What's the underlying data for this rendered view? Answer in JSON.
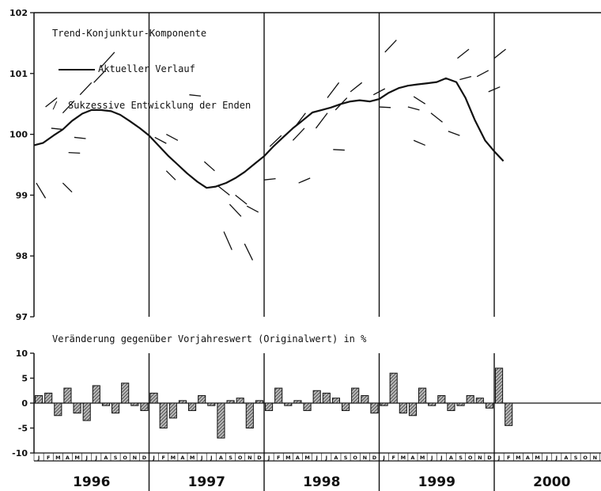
{
  "colors": {
    "ink": "#111111",
    "background": "#ffffff",
    "bar_hatch": "#333333"
  },
  "chart_data": [
    {
      "type": "line",
      "title": "Trend-Konjunktur-Komponente",
      "legend": {
        "position": "top-left",
        "line_label": "Aktueller Verlauf",
        "dash_symbol": "/",
        "dash_label": "Sukzessive Entwicklung der Enden"
      },
      "ylim": [
        97,
        102
      ],
      "yticks": [
        "97",
        "98",
        "99",
        "100",
        "101",
        "102"
      ],
      "xlim": [
        1996.0,
        2001.0
      ],
      "year_dividers": [
        1997,
        1998,
        1999,
        2000
      ],
      "series": [
        {
          "name": "Aktueller Verlauf",
          "points": [
            [
              1996.0,
              99.82
            ],
            [
              1996.08,
              99.86
            ],
            [
              1996.17,
              99.98
            ],
            [
              1996.25,
              100.08
            ],
            [
              1996.33,
              100.22
            ],
            [
              1996.42,
              100.34
            ],
            [
              1996.5,
              100.4
            ],
            [
              1996.58,
              100.4
            ],
            [
              1996.67,
              100.38
            ],
            [
              1996.75,
              100.32
            ],
            [
              1996.83,
              100.22
            ],
            [
              1996.92,
              100.1
            ],
            [
              1997.0,
              99.98
            ],
            [
              1997.08,
              99.82
            ],
            [
              1997.17,
              99.64
            ],
            [
              1997.25,
              99.5
            ],
            [
              1997.33,
              99.36
            ],
            [
              1997.42,
              99.22
            ],
            [
              1997.5,
              99.12
            ],
            [
              1997.58,
              99.14
            ],
            [
              1997.67,
              99.2
            ],
            [
              1997.75,
              99.28
            ],
            [
              1997.83,
              99.38
            ],
            [
              1997.92,
              99.52
            ],
            [
              1998.0,
              99.64
            ],
            [
              1998.08,
              99.8
            ],
            [
              1998.17,
              99.96
            ],
            [
              1998.25,
              100.1
            ],
            [
              1998.33,
              100.22
            ],
            [
              1998.42,
              100.36
            ],
            [
              1998.5,
              100.4
            ],
            [
              1998.58,
              100.44
            ],
            [
              1998.67,
              100.5
            ],
            [
              1998.75,
              100.54
            ],
            [
              1998.83,
              100.56
            ],
            [
              1998.92,
              100.54
            ],
            [
              1999.0,
              100.58
            ],
            [
              1999.08,
              100.68
            ],
            [
              1999.17,
              100.76
            ],
            [
              1999.25,
              100.8
            ],
            [
              1999.33,
              100.82
            ],
            [
              1999.42,
              100.84
            ],
            [
              1999.5,
              100.86
            ],
            [
              1999.58,
              100.92
            ],
            [
              1999.67,
              100.86
            ],
            [
              1999.75,
              100.6
            ],
            [
              1999.83,
              100.24
            ],
            [
              1999.92,
              99.9
            ],
            [
              2000.0,
              99.72
            ],
            [
              2000.08,
              99.56
            ]
          ]
        }
      ],
      "successive_ends": [
        [
          [
            1996.02,
            99.2
          ],
          [
            1996.1,
            98.95
          ]
        ],
        [
          [
            1996.25,
            99.2
          ],
          [
            1996.33,
            99.05
          ]
        ],
        [
          [
            1996.1,
            100.45
          ],
          [
            1996.2,
            100.6
          ]
        ],
        [
          [
            1996.25,
            100.35
          ],
          [
            1996.35,
            100.55
          ]
        ],
        [
          [
            1996.4,
            100.65
          ],
          [
            1996.5,
            100.85
          ]
        ],
        [
          [
            1996.52,
            100.85
          ],
          [
            1996.62,
            101.05
          ]
        ],
        [
          [
            1996.58,
            101.1
          ],
          [
            1996.7,
            101.35
          ]
        ],
        [
          [
            1996.15,
            100.1
          ],
          [
            1996.25,
            100.08
          ]
        ],
        [
          [
            1996.35,
            99.95
          ],
          [
            1996.45,
            99.93
          ]
        ],
        [
          [
            1996.3,
            99.7
          ],
          [
            1996.4,
            99.69
          ]
        ],
        [
          [
            1997.15,
            99.4
          ],
          [
            1997.23,
            99.25
          ]
        ],
        [
          [
            1997.05,
            99.95
          ],
          [
            1997.15,
            99.85
          ]
        ],
        [
          [
            1997.15,
            100.0
          ],
          [
            1997.25,
            99.9
          ]
        ],
        [
          [
            1997.48,
            99.55
          ],
          [
            1997.57,
            99.4
          ]
        ],
        [
          [
            1997.6,
            99.15
          ],
          [
            1997.7,
            99.0
          ]
        ],
        [
          [
            1997.75,
            99.0
          ],
          [
            1997.85,
            98.85
          ]
        ],
        [
          [
            1997.7,
            98.85
          ],
          [
            1997.8,
            98.65
          ]
        ],
        [
          [
            1997.85,
            98.82
          ],
          [
            1997.95,
            98.72
          ]
        ],
        [
          [
            1997.65,
            98.4
          ],
          [
            1997.72,
            98.1
          ]
        ],
        [
          [
            1997.83,
            98.2
          ],
          [
            1997.9,
            97.93
          ]
        ],
        [
          [
            1997.35,
            100.65
          ],
          [
            1997.45,
            100.63
          ]
        ],
        [
          [
            1998.0,
            99.25
          ],
          [
            1998.1,
            99.27
          ]
        ],
        [
          [
            1998.3,
            99.2
          ],
          [
            1998.4,
            99.28
          ]
        ],
        [
          [
            1998.05,
            99.8
          ],
          [
            1998.15,
            99.98
          ]
        ],
        [
          [
            1998.25,
            99.9
          ],
          [
            1998.35,
            100.1
          ]
        ],
        [
          [
            1998.28,
            100.15
          ],
          [
            1998.36,
            100.35
          ]
        ],
        [
          [
            1998.45,
            100.1
          ],
          [
            1998.55,
            100.35
          ]
        ],
        [
          [
            1998.55,
            100.6
          ],
          [
            1998.65,
            100.85
          ]
        ],
        [
          [
            1998.62,
            100.4
          ],
          [
            1998.72,
            100.6
          ]
        ],
        [
          [
            1998.75,
            100.7
          ],
          [
            1998.85,
            100.85
          ]
        ],
        [
          [
            1998.6,
            99.75
          ],
          [
            1998.7,
            99.74
          ]
        ],
        [
          [
            1998.95,
            100.65
          ],
          [
            1999.05,
            100.75
          ]
        ],
        [
          [
            1999.05,
            101.35
          ],
          [
            1999.15,
            101.55
          ]
        ],
        [
          [
            1999.0,
            100.45
          ],
          [
            1999.1,
            100.44
          ]
        ],
        [
          [
            1999.25,
            100.45
          ],
          [
            1999.35,
            100.4
          ]
        ],
        [
          [
            1999.3,
            100.62
          ],
          [
            1999.4,
            100.5
          ]
        ],
        [
          [
            1999.45,
            100.35
          ],
          [
            1999.55,
            100.2
          ]
        ],
        [
          [
            1999.3,
            99.9
          ],
          [
            1999.4,
            99.82
          ]
        ],
        [
          [
            1999.6,
            100.05
          ],
          [
            1999.7,
            99.98
          ]
        ],
        [
          [
            1999.68,
            101.25
          ],
          [
            1999.78,
            101.4
          ]
        ],
        [
          [
            1999.7,
            100.9
          ],
          [
            1999.8,
            100.95
          ]
        ],
        [
          [
            1999.85,
            100.95
          ],
          [
            1999.95,
            101.05
          ]
        ],
        [
          [
            2000.0,
            101.25
          ],
          [
            2000.1,
            101.4
          ]
        ],
        [
          [
            1999.95,
            100.7
          ],
          [
            2000.05,
            100.78
          ]
        ]
      ]
    },
    {
      "type": "bar",
      "title": "Veränderung gegenüber Vorjahreswert (Originalwert) in %",
      "ylim": [
        -10,
        10
      ],
      "yticks": [
        "-10",
        "-5",
        "0",
        "5",
        "10"
      ],
      "month_letters": [
        "J",
        "F",
        "M",
        "A",
        "M",
        "J",
        "J",
        "A",
        "S",
        "O",
        "N",
        "D"
      ],
      "years": [
        "1996",
        "1997",
        "1998",
        "1999",
        "2000"
      ],
      "values": [
        1.5,
        2.0,
        -2.5,
        3.0,
        -2.0,
        -3.5,
        3.5,
        -0.5,
        -2.0,
        4.0,
        -0.5,
        -1.5,
        2.0,
        -5.0,
        -3.0,
        0.5,
        -1.5,
        1.5,
        -0.5,
        -7.0,
        0.5,
        1.0,
        -5.0,
        0.5,
        -1.5,
        3.0,
        -0.5,
        0.5,
        -1.5,
        2.5,
        2.0,
        1.0,
        -1.5,
        3.0,
        1.5,
        -2.0,
        -0.5,
        6.0,
        -2.0,
        -2.5,
        3.0,
        -0.5,
        1.5,
        -1.5,
        -0.5,
        1.5,
        1.0,
        -1.0,
        7.0,
        -4.5
      ]
    }
  ]
}
